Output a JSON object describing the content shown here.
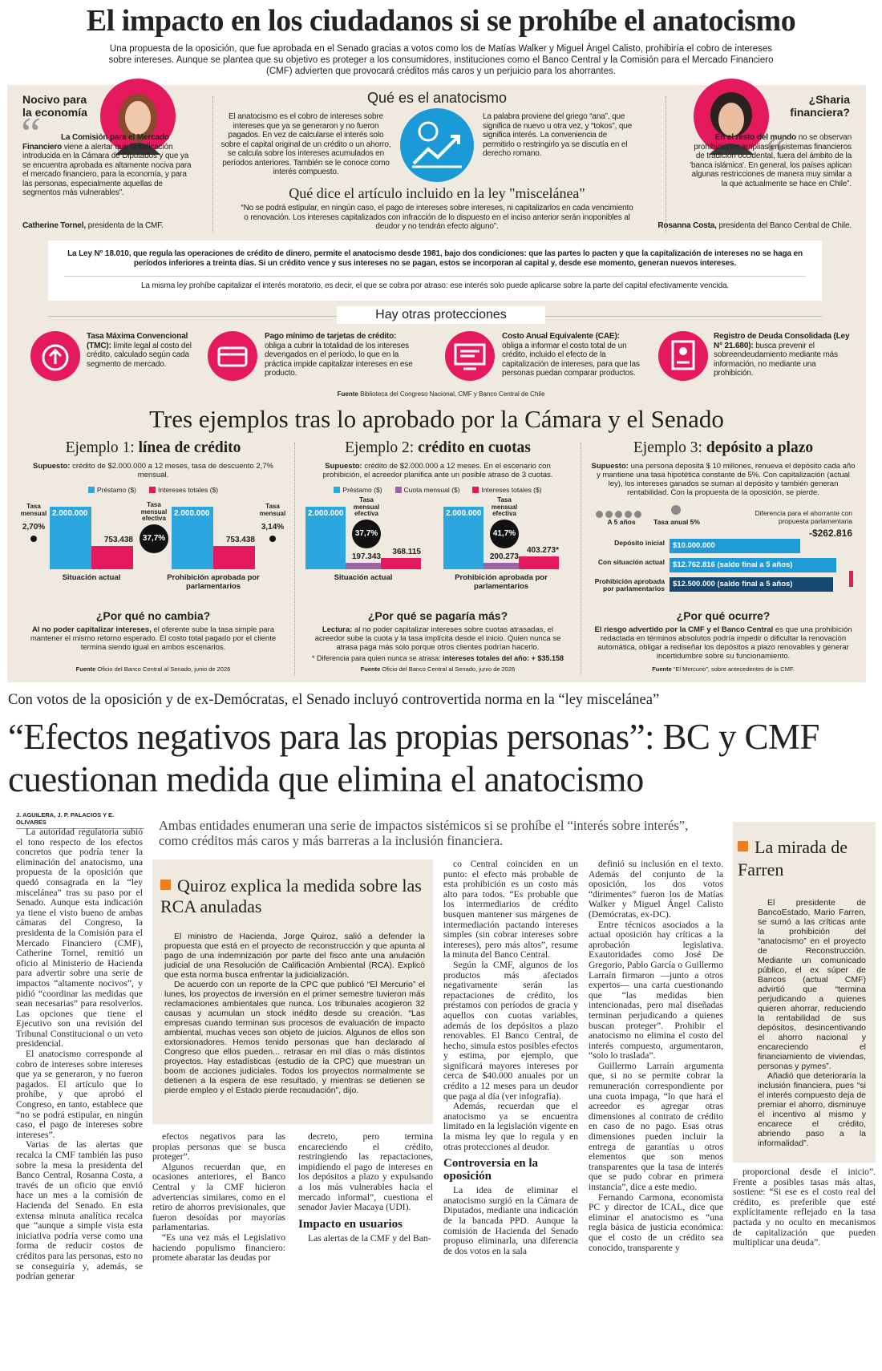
{
  "infografia": {
    "titulo": "El impacto en los ciudadanos si se prohíbe el anatocismo",
    "bajada": "Una propuesta de la oposición, que fue aprobada en el Senado gracias a votos como los de Matías Walker y Miguel Ángel Calisto, prohibiría el cobro de intereses sobre intereses. Aunque se plantea que su objetivo es proteger a los consumidores, instituciones como el Banco Central y la Comisión para el Mercado Financiero (CMF) advierten que provocará créditos más caros y un perjuicio para los ahorrantes.",
    "izquierda": {
      "titulo": "Nocivo para la economía",
      "comilla": "“",
      "cita_lead": "La Comisión para el Mercado Financiero",
      "cita": "viene a alertar que la indicación introducida en la Cámara de Diputados y que ya se encuentra aprobada es altamente nociva para el mercado financiero, para la economía, y para las personas, especialmente aquellas de segmentos más vulnerables”.",
      "autor": "Catherine Tornel,",
      "cargo": "presidenta de la CMF."
    },
    "centro": {
      "titulo": "Qué es el anatocismo",
      "texto_izq": "El anatocismo es el cobro de intereses sobre intereses que ya se generaron y no fueron pagados. En vez de calcularse el interés solo sobre el capital original de un crédito o un ahorro, se calcula sobre los intereses acumulados en períodos anteriores. También se le conoce como interés compuesto.",
      "texto_der": "La palabra proviene del griego “ana”, que significa de nuevo u otra vez, y “tokos”, que significa interés. La conveniencia de permitirlo o restringirlo ya se discutía en el derecho romano.",
      "subtitulo": "Qué dice el artículo incluido en la ley \"miscelánea\"",
      "articulo": "“No se podrá estipular, en ningún caso, el pago de intereses sobre intereses, ni capitalizarlos en cada vencimiento o renovación. Los intereses capitalizados con infracción de lo dispuesto en el inciso anterior serán inoponibles al deudor y no tendrán efecto alguno”."
    },
    "derecha": {
      "titulo": "¿Sharia financiera?",
      "comilla": "“",
      "cita_lead": "En el resto del mundo",
      "cita": "no se observan prohibiciones amplias en sistemas financieros de tradición occidental, fuera del ámbito de la 'banca islámica'. En general, los países aplican algunas restricciones de manera muy similar a la que actualmente se hace en Chile”.",
      "autor": "Rosanna Costa,",
      "cargo": "presidenta del Banco Central de Chile."
    },
    "ley": {
      "texto": "La Ley N° 18.010, que regula las operaciones de crédito de dinero, permite el anatocismo desde 1981, bajo dos condiciones: que las partes lo pacten y que la capitalización de intereses no se haga en períodos inferiores a treinta días. Si un crédito vence y sus intereses no se pagan, estos se incorporan al capital y, desde ese momento, generan nuevos intereses.",
      "moratorio": "La misma ley prohíbe capitalizar el interés moratorio, es decir, el que se cobra por atraso: ese interés solo puede aplicarse sobre la parte del capital efectivamente vencida."
    },
    "protecciones": {
      "titulo": "Hay otras protecciones",
      "items": [
        {
          "nombre": "Tasa Máxima Convencional (TMC):",
          "texto": "límite legal al costo del crédito, calculado según cada segmento de mercado."
        },
        {
          "nombre": "Pago mínimo de tarjetas de crédito:",
          "texto": "obliga a cubrir la totalidad de los intereses devengados en el período, lo que en la práctica impide capitalizar intereses en ese producto."
        },
        {
          "nombre": "Costo Anual Equivalente (CAE):",
          "texto": "obliga a informar el costo total de un crédito, incluido el efecto de la capitalización de intereses, para que las personas puedan comparar productos."
        },
        {
          "nombre": "Registro de Deuda Consolidada (Ley N° 21.680):",
          "texto": "busca prevenir el sobreendeudamiento mediante más información, no mediante una prohibición."
        }
      ],
      "fuente_label": "Fuente",
      "fuente": "Biblioteca del Congreso Nacional, CMF y Banco Central de Chile"
    },
    "ejemplos_titulo": "Tres ejemplos tras lo aprobado por la Cámara y el Senado"
  },
  "ejemplos": [
    {
      "titulo_pre": "Ejemplo 1:",
      "titulo": "línea de crédito",
      "supuesto_label": "Supuesto:",
      "supuesto": "crédito de $2.000.000 a 12 meses, tasa de descuento 2,7% mensual.",
      "legend": [
        {
          "name": "Préstamo ($)",
          "color": "#2ba6de"
        },
        {
          "name": "Intereses totales ($)",
          "color": "#e5195e"
        }
      ],
      "tasa_actual": {
        "label": "Tasa mensual",
        "value": "2,70%"
      },
      "tasa_efectiva": {
        "label": "Tasa mensual efectiva",
        "value": "37,7%"
      },
      "tasa_prohibicion": {
        "label": "Tasa mensual",
        "value": "3,14%"
      },
      "groups": [
        {
          "name": "Situación actual",
          "bars": [
            {
              "value": 2000000,
              "label": "2.000.000",
              "color": "#2ba6de"
            },
            {
              "value": 753438,
              "label": "753.438",
              "color": "#e5195e"
            }
          ]
        },
        {
          "name": "Prohibición aprobada por parlamentarios",
          "bars": [
            {
              "value": 2000000,
              "label": "2.000.000",
              "color": "#2ba6de"
            },
            {
              "value": 753438,
              "label": "753.438",
              "color": "#e5195e"
            }
          ]
        }
      ],
      "pregunta": "¿Por qué no cambia?",
      "respuesta_lead": "Al no poder capitalizar intereses,",
      "respuesta": "el oferente sube la tasa simple para mantener el mismo retorno esperado. El costo total pagado por el cliente termina siendo igual en ambos escenarios.",
      "fuente_label": "Fuente",
      "fuente": "Oficio del Banco Central al Senado, junio de 2026"
    },
    {
      "titulo_pre": "Ejemplo 2:",
      "titulo": "crédito en cuotas",
      "supuesto_label": "Supuesto:",
      "supuesto": "crédito de $2.000.000 a 12 meses. En el escenario con prohibición, el acreedor planifica ante un posible atraso de 3 cuotas.",
      "legend": [
        {
          "name": "Préstamo ($)",
          "color": "#2ba6de"
        },
        {
          "name": "Cuota mensual ($)",
          "color": "#9e62a6"
        },
        {
          "name": "Intereses totales ($)",
          "color": "#e5195e"
        }
      ],
      "groups": [
        {
          "name": "Situación actual",
          "tasa": {
            "label": "Tasa mensual efectiva",
            "value": "37,7%"
          },
          "bars": [
            {
              "value": 2000000,
              "label": "2.000.000",
              "color": "#2ba6de"
            },
            {
              "value": 197343,
              "label": "197.343",
              "color": "#9e62a6"
            },
            {
              "value": 368115,
              "label": "368.115",
              "color": "#e5195e"
            }
          ]
        },
        {
          "name": "Prohibición aprobada por parlamentarios",
          "tasa": {
            "label": "Tasa mensual efectiva",
            "value": "41,7%"
          },
          "bars": [
            {
              "value": 2000000,
              "label": "2.000.000",
              "color": "#2ba6de"
            },
            {
              "value": 200273,
              "label": "200.273",
              "color": "#9e62a6"
            },
            {
              "value": 403273,
              "label": "403.273*",
              "color": "#e5195e"
            }
          ]
        }
      ],
      "pregunta": "¿Por qué se pagaría más?",
      "respuesta_lead": "Lectura:",
      "respuesta": "al no poder capitalizar intereses sobre cuotas atrasadas, el acreedor sube la cuota y la tasa implícita desde el inicio. Quien nunca se atrasa paga más solo porque otros clientes podrían hacerlo.",
      "nota_label": "* Diferencia para quien nunca se atrasa:",
      "nota": "intereses totales del año: + $35.158",
      "fuente_label": "Fuente",
      "fuente": "Oficio del Banco Central al Senado, junio de 2026"
    },
    {
      "titulo_pre": "Ejemplo 3:",
      "titulo": "depósito a plazo",
      "supuesto_label": "Supuesto:",
      "supuesto": "una persona deposita $ 10 millones, renueva el depósito cada año y mantiene una tasa hipotética constante de 5%. Con capitalización (actual ley), los intereses ganados se suman al depósito y también generan rentabilidad. Con la propuesta de la oposición, se pierde.",
      "periodo": "A 5 años",
      "tasa": "Tasa anual 5%",
      "diferencia_label": "Diferencia para el ahorrante con propuesta parlamentaria",
      "diferencia": "-$262.816",
      "rows": [
        {
          "name": "Depósito inicial",
          "value": 10000000,
          "label": "$10.000.000",
          "color": "#1f9bd8"
        },
        {
          "name": "Con situación actual",
          "value": 12762816,
          "label": "$12.762.816",
          "note": "(saldo final a 5 años)",
          "color": "#1f9bd8"
        },
        {
          "name": "Prohibición aprobada por parlamentarios",
          "value": 12500000,
          "label": "$12.500.000",
          "note": "(saldo final a 5 años)",
          "color": "#17486f"
        }
      ],
      "pregunta": "¿Por qué ocurre?",
      "respuesta_lead": "El riesgo advertido por la CMF y el Banco Central",
      "respuesta": "es que una prohibición redactada en términos absolutos podría impedir o dificultar la renovación automática, obligar a rediseñar los depósitos a plazo renovables y generar incertidumbre sobre su funcionamiento.",
      "fuente_label": "Fuente",
      "fuente": "“El Mercurio”, sobre antecedentes de la CMF."
    }
  ],
  "articulo": {
    "epigrafe": "Con votos de la oposición y de ex-Demócratas, el Senado incluyó controvertida norma en la “ley miscelánea”",
    "titular": "“Efectos negativos para las propias personas”: BC y CMF cuestionan medida que elimina el anatocismo",
    "firma": "J. AGUILERA, J. P. PALACIOS Y E. OLIVARES",
    "bajada": "Ambas entidades enumeran una serie de impactos sistémicos si se prohíbe el “interés sobre interés”, como créditos más caros y más barreras a la inclusión financiera.",
    "col1": [
      {
        "p": "La autoridad regulatoria subió el tono respecto de los efectos concretos que podría tener la eliminación del anatocismo, una propuesta de la oposición que quedó consagrada en la “ley miscelánea” tras su paso por el Senado. Aunque esta indicación ya tiene el visto bueno de ambas cámaras del Congreso, la presidenta de la Comisión para el Mercado Financiero (CMF), Catherine Tornel, remitió un oficio al Ministerio de Hacienda para advertir sobre una serie de impactos “altamente nocivos”, y pidió “coordinar las medidas que sean necesarias” para resolverlos. Las opciones que tiene el Ejecutivo son una revisión del Tribunal Constitucional o un veto presidencial."
      },
      {
        "p": "El anatocismo corresponde al cobro de intereses sobre intereses que ya se generaron, y no fueron pagados. El artículo que lo prohíbe, y que aprobó el Congreso, en tanto, establece que “no se podrá estipular, en ningún caso, el pago de intereses sobre intereses”."
      },
      {
        "p": "Varias de las alertas que recalca la CMF también las puso sobre la mesa la presidenta del Banco Central, Rosanna Costa, a través de un oficio que envió hace un mes a la comisión de Hacienda del Senado. En esta extensa minuta analítica recalca que “aunque a simple vista esta iniciativa podría verse como una forma de reducir costos de créditos para las personas, esto no se conseguiría y, además, se podrían generar"
      }
    ],
    "recuadro": {
      "titulo": "Quiroz explica la medida sobre las RCA anuladas",
      "texto": [
        {
          "p": "El ministro de Hacienda, Jorge Quiroz, salió a defender la propuesta que está en el proyecto de reconstrucción y que apunta al pago de una indemnización por parte del fisco ante una anulación judicial de una Resolución de Calificación Ambiental (RCA). Explicó que esta norma busca enfrentar la judicialización."
        },
        {
          "p": "De acuerdo con un reporte de la CPC que publicó “El Mercurio” el lunes, los proyectos de inversión en el primer semestre tuvieron más reclamaciones ambientales que nunca. Los tribunales acogieron 32 causas y acumulan un stock inédito desde su creación. “Las empresas cuando terminan sus procesos de evaluación de impacto ambiental, muchas veces son objeto de juicios. Algunos de ellos son extorsionadores. Hemos tenido personas que han declarado al Congreso que ellos pueden... retrasar en mil días o más distintos proyectos. Hay estadísticas (estudio de la CPC) que muestran un boom de acciones judiciales. Todos los proyectos normalmente se detienen a la espera de ese resultado, y mientras se detienen se pierde empleo y el Estado pierde recaudación”, dijo."
        }
      ]
    },
    "col2": [
      {
        "p": "efectos negativos para las propias personas que se busca proteger”."
      },
      {
        "p": "Algunos recuerdan que, en ocasiones anteriores, el Banco Central y la CMF hicieron advertencias similares, como en el retiro de ahorros previsionales, que fueron desoídas por mayorías parlamentarias."
      },
      {
        "p": "“Es una vez más el Legislativo haciendo populismo financiero: promete abaratar las deudas por"
      }
    ],
    "col3": [
      {
        "p": "decreto, pero termina encareciendo el crédito, restringiendo las repactaciones, impidiendo el pago de intereses en los depósitos a plazo y expulsando a los más vulnerables hacia el mercado informal”, cuestiona el senador Javier Macaya (UDI)."
      },
      {
        "h": "Impacto en usuarios"
      },
      {
        "p": "Las alertas de la CMF y del Ban-"
      }
    ],
    "col4": [
      {
        "p": "co Central coinciden en un punto: el efecto más probable de esta prohibición es un costo más alto para todos. “Es probable que los intermediarios de crédito busquen mantener sus márgenes de intermediación pactando intereses simples (sin cobrar intereses sobre intereses), pero más altos”, resume la minuta del Banco Central."
      },
      {
        "p": "Según la CMF, algunos de los productos más afectados negativamente serán las repactaciones de crédito, los préstamos con períodos de gracia y aquellos con cuotas variables, además de los depósitos a plazo renovables. El Banco Central, de hecho, simula estos posibles efectos y estima, por ejemplo, que significará mayores intereses por cerca de $40.000 anuales por un crédito a 12 meses para un deudor que paga al día (ver infografía)."
      },
      {
        "p": "Además, recuerdan que el anatocismo ya se encuentra limitado en la legislación vigente en la misma ley que lo regula y en otras protecciones al deudor."
      },
      {
        "h": "Controversia en la oposición"
      },
      {
        "p": "La idea de eliminar el anatocismo surgió en la Cámara de Diputados, mediante una indicación de la bancada PPD. Aunque la comisión de Hacienda del Senado propuso eliminarla, una diferencia de dos votos en la sala"
      }
    ],
    "col5": [
      {
        "p": "definió su inclusión en el texto. Además del conjunto de la oposición, los dos votos “dirimentes” fueron los de Matías Walker y Miguel Ángel Calisto (Demócratas, ex-DC)."
      },
      {
        "p": "Entre técnicos asociados a la actual oposición hay críticas a la aprobación legislativa. Exautoridades como José De Gregorio, Pablo García o Guillermo Larraín firmaron —junto a otros expertos— una carta cuestionando que “las medidas bien intencionadas, pero mal diseñadas terminan perjudicando a quienes buscan proteger”. Prohibir el anatocismo no elimina el costo del interés compuesto, argumentaron, “solo lo traslada”."
      },
      {
        "p": "Guillermo Larraín argumenta que, si no se permite cobrar la remuneración correspondiente por una cuota impaga, “lo que hará el acreedor es agregar otras dimensiones al contrato de crédito en caso de no pago. Esas otras dimensiones pueden incluir la entrega de garantías u otros elementos que son menos transparentes que la tasa de interés que se pudo cobrar en primera instancia”, dice a este medio."
      },
      {
        "p": "Fernando Carmona, economista PC y director de ICAL, dice que eliminar el anatocismo es “una regla básica de justicia económica: que el costo de un crédito sea conocido, transparente y"
      }
    ],
    "farren": {
      "titulo": "La mirada de Farren",
      "texto": [
        {
          "p": "El presidente de BancoEstado, Mario Farren, se sumó a las críticas ante la prohibición del “anatocismo” en el proyecto de Reconstrucción. Mediante un comunicado público, el ex súper de Bancos (actual CMF) advirtió que “termina perjudicando a quienes quieren ahorrar, reduciendo la rentabilidad de sus depósitos, desincentivando el ahorro nacional y encareciendo el financiamiento de viviendas, personas y pymes”."
        },
        {
          "p": "Añadió que deterioraría la inclusión financiera, pues “si el interés compuesto deja de premiar el ahorro, disminuye el incentivo al mismo y encarece el crédito, abriendo paso a la informalidad”."
        }
      ]
    },
    "col6": [
      {
        "p": "proporcional desde el inicio”. Frente a posibles tasas más altas, sostiene: “Si ese es el costo real del crédito, es preferible que esté explícitamente reflejado en la tasa pactada y no oculto en mecanismos de capitalización que pueden multiplicar una deuda”."
      }
    ]
  }
}
